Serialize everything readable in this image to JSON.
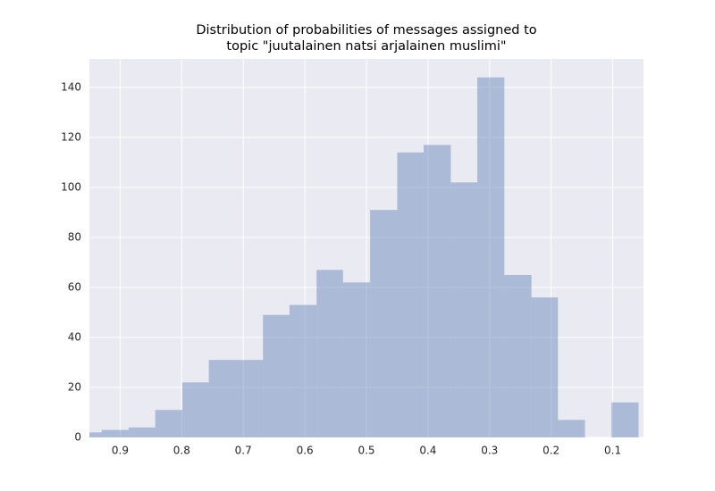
{
  "chart_data": {
    "type": "histogram",
    "title": [
      "Distribution of probabilities of messages assigned to",
      "topic \"juutalainen natsi arjalainen muslimi\""
    ],
    "bins": [
      0.058,
      0.102,
      0.145,
      0.189,
      0.232,
      0.276,
      0.32,
      0.363,
      0.407,
      0.45,
      0.494,
      0.538,
      0.581,
      0.625,
      0.668,
      0.712,
      0.756,
      0.799,
      0.843,
      0.886,
      0.93,
      0.974
    ],
    "values": [
      14,
      0,
      7,
      56,
      65,
      144,
      102,
      117,
      114,
      91,
      62,
      67,
      53,
      49,
      31,
      31,
      22,
      11,
      4,
      3,
      2
    ],
    "color": "#4c72b0",
    "opacity": 0.4,
    "xlim": [
      0.95,
      0.05
    ],
    "xticks": [
      0.9,
      0.8,
      0.7,
      0.6,
      0.5,
      0.4,
      0.3,
      0.2,
      0.1
    ],
    "ylim": [
      0,
      151.4
    ],
    "yticks": [
      0,
      20,
      40,
      60,
      80,
      100,
      120,
      140
    ],
    "grid": true
  }
}
